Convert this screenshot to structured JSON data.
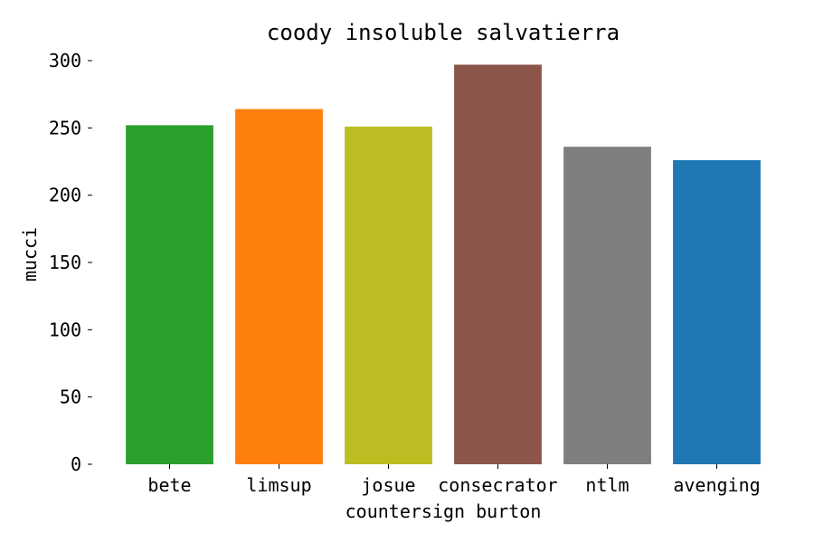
{
  "chart_data": {
    "type": "bar",
    "title": "coody insoluble salvatierra",
    "xlabel": "countersign burton",
    "ylabel": "mucci",
    "categories": [
      "bete",
      "limsup",
      "josue",
      "consecrator",
      "ntlm",
      "avenging"
    ],
    "values": [
      252,
      264,
      251,
      297,
      236,
      226
    ],
    "colors": [
      "#2ca02c",
      "#ff7f0e",
      "#bcbd22",
      "#8c564b",
      "#7f7f7f",
      "#1f77b4"
    ],
    "ylim": [
      0,
      300
    ],
    "yticks": [
      0,
      50,
      100,
      150,
      200,
      250,
      300
    ],
    "grid": false,
    "legend": "none"
  }
}
